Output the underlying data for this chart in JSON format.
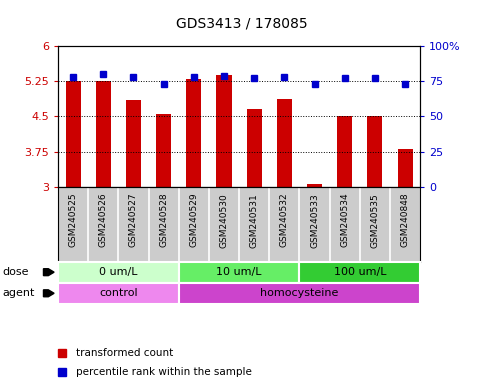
{
  "title": "GDS3413 / 178085",
  "samples": [
    "GSM240525",
    "GSM240526",
    "GSM240527",
    "GSM240528",
    "GSM240529",
    "GSM240530",
    "GSM240531",
    "GSM240532",
    "GSM240533",
    "GSM240534",
    "GSM240535",
    "GSM240848"
  ],
  "bar_values": [
    5.25,
    5.25,
    4.85,
    4.55,
    5.3,
    5.38,
    4.65,
    4.88,
    3.05,
    4.5,
    4.5,
    3.8
  ],
  "dot_values": [
    78,
    80,
    78,
    73,
    78,
    79,
    77,
    78,
    73,
    77,
    77,
    73
  ],
  "bar_color": "#cc0000",
  "dot_color": "#0000cc",
  "ylim_left": [
    3,
    6
  ],
  "ylim_right": [
    0,
    100
  ],
  "yticks_left": [
    3,
    3.75,
    4.5,
    5.25,
    6
  ],
  "ytick_labels_left": [
    "3",
    "3.75",
    "4.5",
    "5.25",
    "6"
  ],
  "yticks_right": [
    0,
    25,
    50,
    75,
    100
  ],
  "ytick_labels_right": [
    "0",
    "25",
    "50",
    "75",
    "100%"
  ],
  "dose_groups": [
    {
      "label": "0 um/L",
      "start": 0,
      "end": 4,
      "color": "#ccffcc"
    },
    {
      "label": "10 um/L",
      "start": 4,
      "end": 8,
      "color": "#66ee66"
    },
    {
      "label": "100 um/L",
      "start": 8,
      "end": 12,
      "color": "#33cc33"
    }
  ],
  "agent_groups": [
    {
      "label": "control",
      "start": 0,
      "end": 4,
      "color": "#ee88ee"
    },
    {
      "label": "homocysteine",
      "start": 4,
      "end": 12,
      "color": "#cc44cc"
    }
  ],
  "bg_color": "#ffffff",
  "label_bg_color": "#cccccc",
  "label_divider_color": "#ffffff",
  "legend_bar": "transformed count",
  "legend_dot": "percentile rank within the sample",
  "dose_label": "dose",
  "agent_label": "agent"
}
